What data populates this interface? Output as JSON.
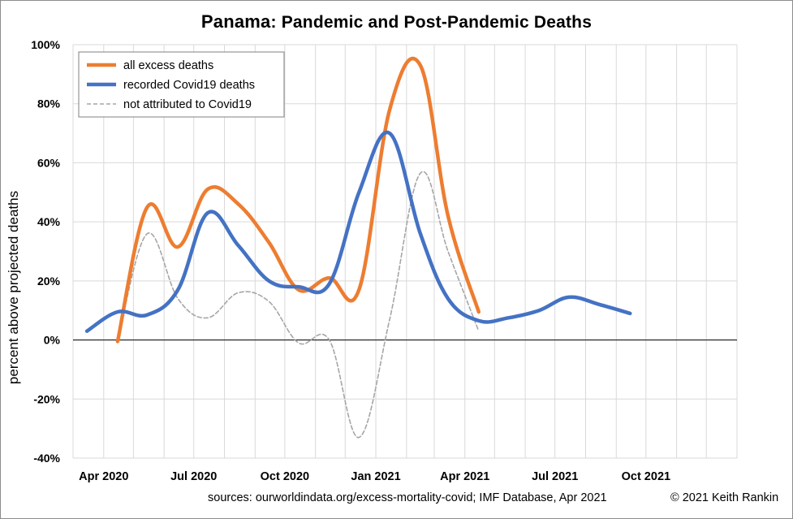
{
  "chart_data": {
    "type": "line",
    "title_country": "Panama",
    "title_rest": ": Pandemic and Post-Pandemic Deaths",
    "ylabel": "percent above projected deaths",
    "xlabel": "",
    "ylim": [
      -40,
      100
    ],
    "xlim": [
      "2020-03-01",
      "2022-01-01"
    ],
    "grid": true,
    "legend_position": "top-left",
    "y_ticks": [
      {
        "value": 100,
        "label": "100%"
      },
      {
        "value": 80,
        "label": "80%"
      },
      {
        "value": 60,
        "label": "60%"
      },
      {
        "value": 40,
        "label": "40%"
      },
      {
        "value": 20,
        "label": "20%"
      },
      {
        "value": 0,
        "label": "0%"
      },
      {
        "value": -20,
        "label": "-20%"
      },
      {
        "value": -40,
        "label": "-40%"
      }
    ],
    "x_ticks": [
      {
        "date": "2020-04-01",
        "label": "Apr 2020"
      },
      {
        "date": "2020-07-01",
        "label": "Jul 2020"
      },
      {
        "date": "2020-10-01",
        "label": "Oct 2020"
      },
      {
        "date": "2021-01-01",
        "label": "Jan 2021"
      },
      {
        "date": "2021-04-01",
        "label": "Apr 2021"
      },
      {
        "date": "2021-07-01",
        "label": "Jul 2021"
      },
      {
        "date": "2021-10-01",
        "label": "Oct 2021"
      }
    ],
    "series": [
      {
        "name": "all excess deaths",
        "color": "#ED7D31",
        "style": "solid",
        "points": [
          [
            "2020-04-15",
            -0.5
          ],
          [
            "2020-05-15",
            45
          ],
          [
            "2020-06-15",
            31.5
          ],
          [
            "2020-07-15",
            51
          ],
          [
            "2020-08-15",
            46
          ],
          [
            "2020-09-15",
            33
          ],
          [
            "2020-10-15",
            17
          ],
          [
            "2020-11-15",
            21
          ],
          [
            "2020-12-15",
            17
          ],
          [
            "2021-01-15",
            78
          ],
          [
            "2021-02-15",
            93
          ],
          [
            "2021-03-15",
            42
          ],
          [
            "2021-04-15",
            9.5
          ]
        ]
      },
      {
        "name": "recorded Covid19 deaths",
        "color": "#4472C4",
        "style": "solid",
        "points": [
          [
            "2020-03-15",
            3
          ],
          [
            "2020-04-15",
            9.5
          ],
          [
            "2020-05-15",
            8.5
          ],
          [
            "2020-06-15",
            17
          ],
          [
            "2020-07-15",
            43
          ],
          [
            "2020-08-15",
            32
          ],
          [
            "2020-09-15",
            20
          ],
          [
            "2020-10-15",
            18
          ],
          [
            "2020-11-15",
            19
          ],
          [
            "2020-12-15",
            50
          ],
          [
            "2021-01-15",
            70
          ],
          [
            "2021-02-15",
            36
          ],
          [
            "2021-03-15",
            14
          ],
          [
            "2021-04-15",
            6.5
          ],
          [
            "2021-05-15",
            7.5
          ],
          [
            "2021-06-15",
            10
          ],
          [
            "2021-07-15",
            14.5
          ],
          [
            "2021-08-15",
            12
          ],
          [
            "2021-09-15",
            9
          ]
        ]
      },
      {
        "name": "not attributed to Covid19",
        "color": "#A6A6A6",
        "style": "dashed",
        "points": [
          [
            "2020-04-15",
            -0.5
          ],
          [
            "2020-05-15",
            36
          ],
          [
            "2020-06-15",
            14
          ],
          [
            "2020-07-15",
            7.5
          ],
          [
            "2020-08-15",
            16
          ],
          [
            "2020-09-15",
            13
          ],
          [
            "2020-10-15",
            -1
          ],
          [
            "2020-11-15",
            0
          ],
          [
            "2020-12-15",
            -33
          ],
          [
            "2021-01-15",
            7
          ],
          [
            "2021-02-15",
            56.5
          ],
          [
            "2021-03-15",
            30
          ],
          [
            "2021-04-15",
            3
          ]
        ]
      }
    ]
  },
  "footer": {
    "sources": "sources:  ourworldindata.org/excess-mortality-covid;  IMF Database, Apr 2021",
    "copyright": "© 2021 Keith Rankin"
  }
}
